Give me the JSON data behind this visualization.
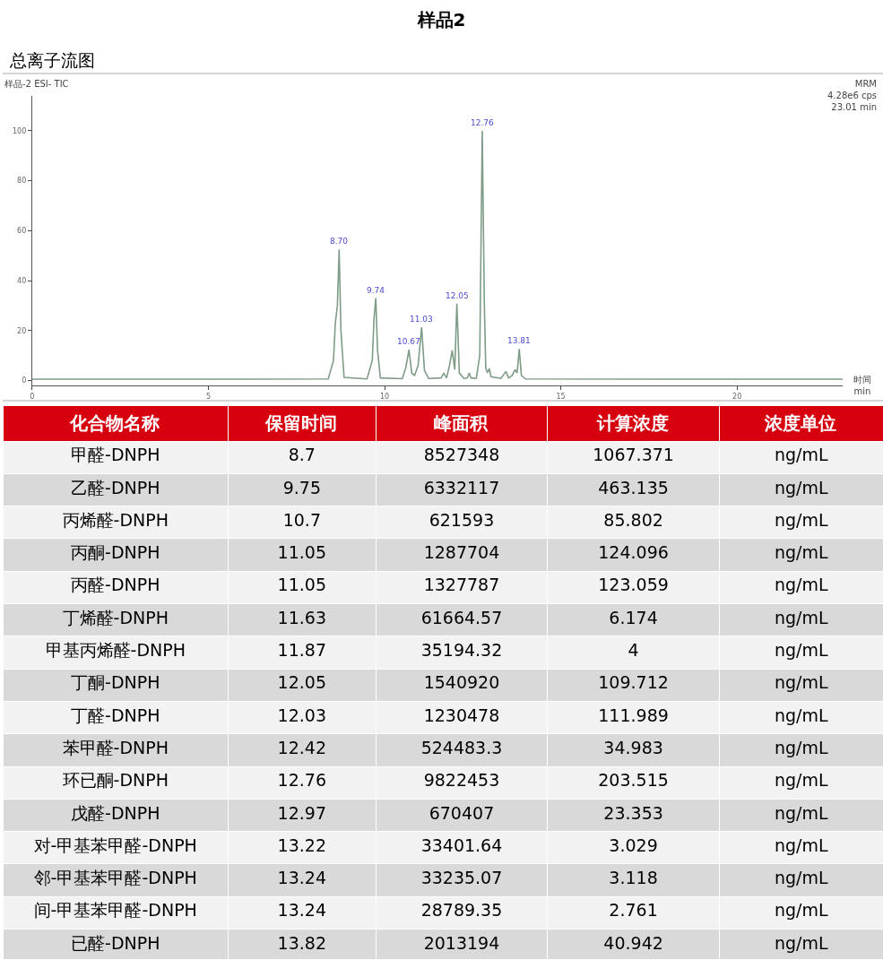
{
  "chart_data": [
    {
      "type": "line",
      "title": "样品2",
      "subtitle": "总离子流图",
      "xlabel": "时间\nmin",
      "x": [
        0,
        3,
        6,
        8.4,
        8.55,
        8.6,
        8.66,
        8.71,
        8.76,
        8.85,
        9.5,
        9.65,
        9.7,
        9.75,
        9.8,
        9.88,
        10.5,
        10.6,
        10.69,
        10.77,
        10.85,
        10.95,
        11.05,
        11.13,
        11.25,
        11.6,
        11.68,
        11.76,
        11.84,
        11.92,
        11.99,
        12.05,
        12.12,
        12.25,
        12.35,
        12.4,
        12.45,
        12.6,
        12.7,
        12.77,
        12.83,
        12.87,
        12.92,
        12.97,
        13.02,
        13.3,
        13.44,
        13.52,
        13.62,
        13.7,
        13.76,
        13.82,
        13.88,
        14.0,
        18,
        23
      ],
      "series": [
        {
          "color": "#7f9c86",
          "values": [
            0.5,
            0.5,
            0.5,
            0.6,
            8,
            22.8,
            30,
            52.5,
            20,
            1.2,
            0.6,
            8,
            25,
            33,
            12,
            1,
            0.7,
            5,
            12.3,
            3,
            2,
            6,
            21.3,
            4,
            0.8,
            1,
            2.8,
            1,
            6,
            12,
            4.3,
            30.8,
            3,
            0.8,
            1,
            3,
            1,
            0.8,
            10,
            100,
            30,
            4.8,
            3,
            4.8,
            1.5,
            0.8,
            3.6,
            1,
            2,
            4.3,
            3,
            12.6,
            2,
            0.6,
            0.5,
            0.5
          ]
        }
      ],
      "xlim": [
        0,
        23
      ],
      "ylim": [
        -2,
        114
      ],
      "xticks": [
        0,
        5,
        10,
        15,
        20
      ],
      "yticks": [
        0,
        20,
        40,
        60,
        80,
        100
      ],
      "marker": "none",
      "line_style": "solid",
      "annotations": [
        {
          "text": "8.70",
          "x": 8.71,
          "y": 52.5
        },
        {
          "text": "9.74",
          "x": 9.75,
          "y": 33
        },
        {
          "text": "10.67",
          "x": 10.69,
          "y": 12.3
        },
        {
          "text": "11.03",
          "x": 11.05,
          "y": 21.3
        },
        {
          "text": "12.05",
          "x": 12.05,
          "y": 30.8
        },
        {
          "text": "12.76",
          "x": 12.77,
          "y": 100
        },
        {
          "text": "13.81",
          "x": 13.82,
          "y": 12.6
        },
        "样品-2 ESI- TIC",
        "MRM\n4.28e6 cps\n23.01 min"
      ]
    },
    {
      "type": "other",
      "color": "#d7000f",
      "categories": [
        "化合物名称",
        "保留时间",
        "峰面积",
        "计算浓度",
        "浓度单位"
      ],
      "cell_labels": [
        [
          "甲醛-DNPH",
          "8.7",
          "8527348",
          "1067.371",
          "ng/mL"
        ],
        [
          "乙醛-DNPH",
          "9.75",
          "6332117",
          "463.135",
          "ng/mL"
        ],
        [
          "丙烯醛-DNPH",
          "10.7",
          "621593",
          "85.802",
          "ng/mL"
        ],
        [
          "丙酮-DNPH",
          "11.05",
          "1287704",
          "124.096",
          "ng/mL"
        ],
        [
          "丙醛-DNPH",
          "11.05",
          "1327787",
          "123.059",
          "ng/mL"
        ],
        [
          "丁烯醛-DNPH",
          "11.63",
          "61664.57",
          "6.174",
          "ng/mL"
        ],
        [
          "甲基丙烯醛-DNPH",
          "11.87",
          "35194.32",
          "4",
          "ng/mL"
        ],
        [
          "丁酮-DNPH",
          "12.05",
          "1540920",
          "109.712",
          "ng/mL"
        ],
        [
          "丁醛-DNPH",
          "12.03",
          "1230478",
          "111.989",
          "ng/mL"
        ],
        [
          "苯甲醛-DNPH",
          "12.42",
          "524483.3",
          "34.983",
          "ng/mL"
        ],
        [
          "环已酮-DNPH",
          "12.76",
          "9822453",
          "203.515",
          "ng/mL"
        ],
        [
          "戊醛-DNPH",
          "12.97",
          "670407",
          "23.353",
          "ng/mL"
        ],
        [
          "对-甲基苯甲醛-DNPH",
          "13.22",
          "33401.64",
          "3.029",
          "ng/mL"
        ],
        [
          "邻-甲基苯甲醛-DNPH",
          "13.24",
          "33235.07",
          "3.118",
          "ng/mL"
        ],
        [
          "间-甲基苯甲醛-DNPH",
          "13.24",
          "28789.35",
          "2.761",
          "ng/mL"
        ],
        [
          "已醛-DNPH",
          "13.82",
          "2013194",
          "40.942",
          "ng/mL"
        ]
      ]
    }
  ]
}
